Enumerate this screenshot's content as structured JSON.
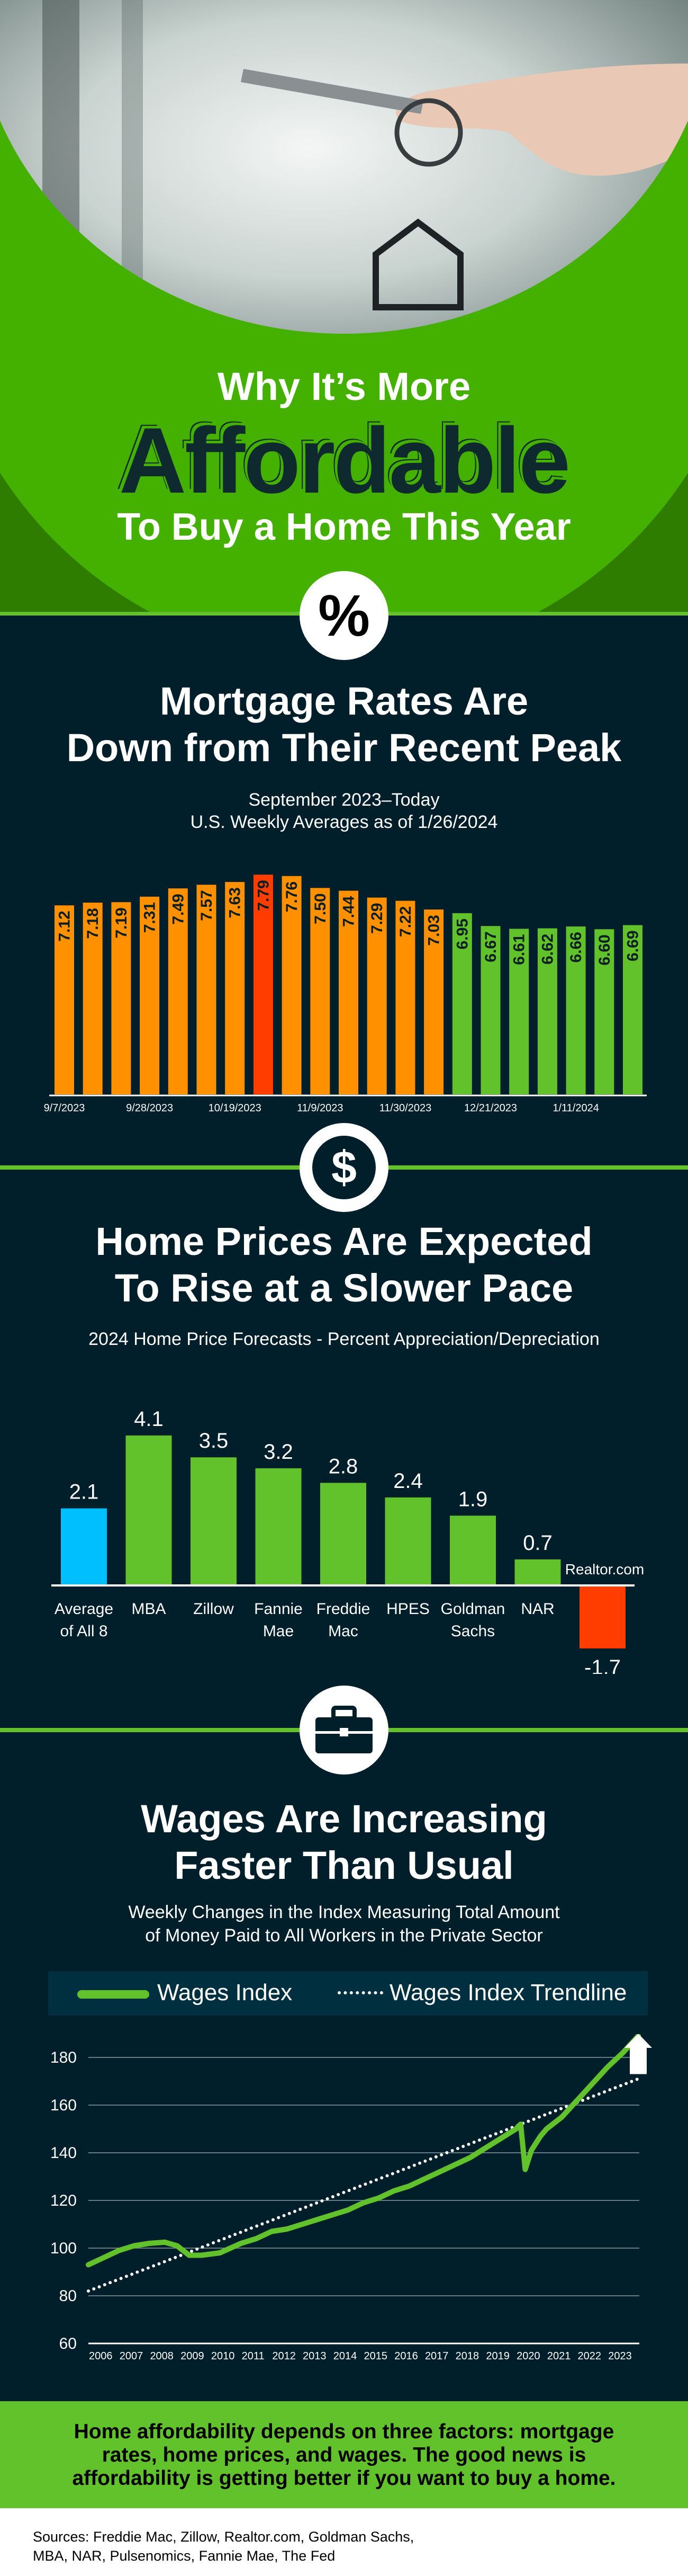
{
  "hero": {
    "line1": "Why It’s More",
    "line2": "Affordable",
    "line3": "To Buy a Home This Year",
    "icon": "percent-icon"
  },
  "colors": {
    "background": "#001F2B",
    "brand_green": "#62C22B",
    "hero_green": "#44B100",
    "orange": "#FF9100",
    "red": "#FF3D00",
    "blue": "#00BFFF"
  },
  "section1": {
    "title_line1": "Mortgage Rates Are",
    "title_line2": "Down from Their Recent Peak",
    "subtitle_line1": "September 2023–Today",
    "subtitle_line2": "U.S. Weekly Averages as of 1/26/2024",
    "icon": "dollar-icon"
  },
  "section2": {
    "title_line1": "Home Prices Are Expected",
    "title_line2": "To Rise at a Slower Pace",
    "subtitle": "2024 Home Price Forecasts - Percent Appreciation/Depreciation",
    "icon": "briefcase-icon"
  },
  "section3": {
    "title_line1": "Wages Are Increasing",
    "title_line2": "Faster Than Usual",
    "subtitle_line1": "Weekly Changes in the Index Measuring Total Amount",
    "subtitle_line2": "of Money Paid to All Workers in the Private Sector"
  },
  "chart_data": [
    {
      "type": "bar",
      "categories": [
        "9/7/2023",
        "",
        "",
        "9/28/2023",
        "",
        "",
        "10/19/2023",
        "",
        "",
        "11/9/2023",
        "",
        "",
        "11/30/2023",
        "",
        "",
        "12/21/2023",
        "",
        "",
        "1/11/2024",
        "",
        ""
      ],
      "values": [
        7.12,
        7.18,
        7.19,
        7.31,
        7.49,
        7.57,
        7.63,
        7.79,
        7.76,
        7.5,
        7.44,
        7.29,
        7.22,
        7.03,
        6.95,
        6.67,
        6.61,
        6.62,
        6.66,
        6.6,
        6.69
      ],
      "bar_colors": [
        "orange",
        "orange",
        "orange",
        "orange",
        "orange",
        "orange",
        "orange",
        "red",
        "orange",
        "orange",
        "orange",
        "orange",
        "orange",
        "orange",
        "green",
        "green",
        "green",
        "green",
        "green",
        "green",
        "green"
      ],
      "ylim": [
        3,
        8
      ],
      "grid": false,
      "data_labels": "inside-vertical"
    },
    {
      "type": "bar",
      "categories": [
        "Average of All 8",
        "MBA",
        "Zillow",
        "Fannie Mae",
        "Freddie Mac",
        "HPES",
        "Goldman Sachs",
        "NAR",
        "Realtor.com"
      ],
      "category_lines": [
        [
          "Average",
          "of All 8"
        ],
        [
          "MBA"
        ],
        [
          "Zillow"
        ],
        [
          "Fannie",
          "Mae"
        ],
        [
          "Freddie",
          "Mac"
        ],
        [
          "HPES"
        ],
        [
          "Goldman",
          "Sachs"
        ],
        [
          "NAR"
        ],
        [
          "Realtor.com"
        ]
      ],
      "values": [
        2.1,
        4.1,
        3.5,
        3.2,
        2.8,
        2.4,
        1.9,
        0.7,
        -1.7
      ],
      "value_labels": [
        "2.1",
        "4.1",
        "3.5",
        "3.2",
        "2.8",
        "2.4",
        "1.9",
        "0.7",
        "-1.7"
      ],
      "bar_colors": [
        "blue",
        "green",
        "green",
        "green",
        "green",
        "green",
        "green",
        "green",
        "red"
      ],
      "grid": false
    },
    {
      "type": "line",
      "legend": [
        "Wages Index",
        "Wages Index Trendline"
      ],
      "legend_position": "top",
      "x_ticks": [
        "2006",
        "2007",
        "2008",
        "2009",
        "2010",
        "2011",
        "2012",
        "2013",
        "2014",
        "2015",
        "2016",
        "2017",
        "2018",
        "2019",
        "2020",
        "2021",
        "2022",
        "2023"
      ],
      "y_ticks": [
        "60",
        "80",
        "100",
        "120",
        "140",
        "160",
        "180"
      ],
      "ylim": [
        60,
        190
      ],
      "xlim": [
        2006,
        2024
      ],
      "grid": true,
      "series": [
        {
          "name": "Wages Index",
          "x": [
            2006,
            2006.5,
            2007,
            2007.5,
            2008,
            2008.5,
            2008.9,
            2009.3,
            2009.7,
            2010.3,
            2011,
            2011.5,
            2012,
            2012.5,
            2013,
            2013.5,
            2014,
            2014.5,
            2015,
            2015.5,
            2016,
            2016.5,
            2017,
            2017.5,
            2018,
            2018.5,
            2019,
            2019.5,
            2020,
            2020.15,
            2020.3,
            2020.5,
            2020.8,
            2021,
            2021.5,
            2022,
            2022.5,
            2023,
            2023.5,
            2024
          ],
          "y": [
            93,
            96,
            99,
            101,
            102,
            102.5,
            101,
            97,
            97,
            98,
            102,
            104,
            107,
            108,
            110,
            112,
            114,
            116,
            119,
            121,
            124,
            126,
            129,
            132,
            135,
            138,
            142,
            146,
            150,
            152,
            133,
            141,
            147,
            150,
            155,
            162,
            169,
            176,
            182,
            189
          ]
        },
        {
          "name": "Wages Index Trendline",
          "x": [
            2006,
            2024
          ],
          "y": [
            82,
            171
          ]
        }
      ],
      "annotation": "up-arrow"
    }
  ],
  "footer": {
    "message_line1": "Home affordability depends on three factors: mortgage",
    "message_line2": "rates, home prices, and wages. The good news is",
    "message_line3": "affordability is getting better if you want to buy a home.",
    "sources_line1": "Sources: Freddie Mac, Zillow, Realtor.com, Goldman Sachs,",
    "sources_line2": "MBA, NAR, Pulsenomics, Fannie Mae, The Fed"
  }
}
